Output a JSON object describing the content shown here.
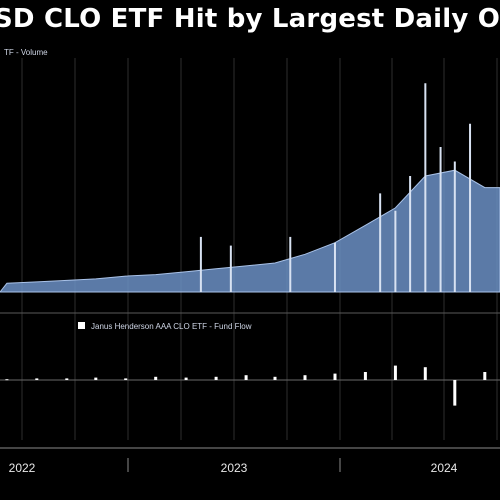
{
  "page": {
    "title": "SD CLO ETF Hit by Largest Daily Ou"
  },
  "colors": {
    "background": "#000000",
    "volume_fill": "#6b8fc4",
    "volume_line": "#a9c2e8",
    "volume_spike": "#d8e2f2",
    "flow_bar": "#ffffff",
    "grid": "#2e2e2e",
    "axis": "#8a8a8a"
  },
  "chart_data": [
    {
      "type": "area",
      "legend": {
        "label": "TF - Volume",
        "placement": "top-left"
      },
      "series": [
        {
          "name": "TF - Volume",
          "x": [
            "2021-09",
            "2021-11",
            "2022-01",
            "2022-03",
            "2022-05",
            "2022-07",
            "2022-09",
            "2022-11",
            "2023-01",
            "2023-03",
            "2023-05",
            "2023-07",
            "2023-09",
            "2023-11",
            "2024-01",
            "2024-03",
            "2024-05"
          ],
          "values": [
            0.3,
            0.35,
            0.4,
            0.45,
            0.55,
            0.6,
            0.7,
            0.8,
            0.9,
            1.0,
            1.3,
            1.7,
            2.3,
            2.9,
            4.0,
            4.2,
            3.6
          ]
        }
      ],
      "spikes": [
        {
          "x": "2022-10",
          "value": 1.9
        },
        {
          "x": "2022-12",
          "value": 1.6
        },
        {
          "x": "2023-04",
          "value": 1.9
        },
        {
          "x": "2023-07",
          "value": 1.7
        },
        {
          "x": "2023-10",
          "value": 3.4
        },
        {
          "x": "2023-11",
          "value": 2.8
        },
        {
          "x": "2023-12",
          "value": 4.0
        },
        {
          "x": "2024-01",
          "value": 7.2
        },
        {
          "x": "2024-02",
          "value": 5.0
        },
        {
          "x": "2024-03",
          "value": 4.5
        },
        {
          "x": "2024-04",
          "value": 5.8
        }
      ],
      "grid": true
    },
    {
      "type": "bar",
      "legend": {
        "label": "Janus Henderson AAA CLO ETF - Fund Flow",
        "placement": "top-left"
      },
      "series": [
        {
          "name": "Janus Henderson AAA CLO ETF - Fund Flow",
          "x": [
            "2021-09",
            "2021-11",
            "2022-01",
            "2022-03",
            "2022-05",
            "2022-07",
            "2022-09",
            "2022-11",
            "2023-01",
            "2023-03",
            "2023-05",
            "2023-07",
            "2023-09",
            "2023-11",
            "2024-01",
            "2024-03",
            "2024-05"
          ],
          "values": [
            0.05,
            0.1,
            0.1,
            0.15,
            0.1,
            0.2,
            0.15,
            0.2,
            0.3,
            0.2,
            0.3,
            0.4,
            0.5,
            0.9,
            0.8,
            -1.6,
            0.5
          ]
        }
      ],
      "grid": true
    }
  ],
  "x_axis": {
    "ticks": [
      "2022",
      "2023",
      "2024"
    ]
  }
}
